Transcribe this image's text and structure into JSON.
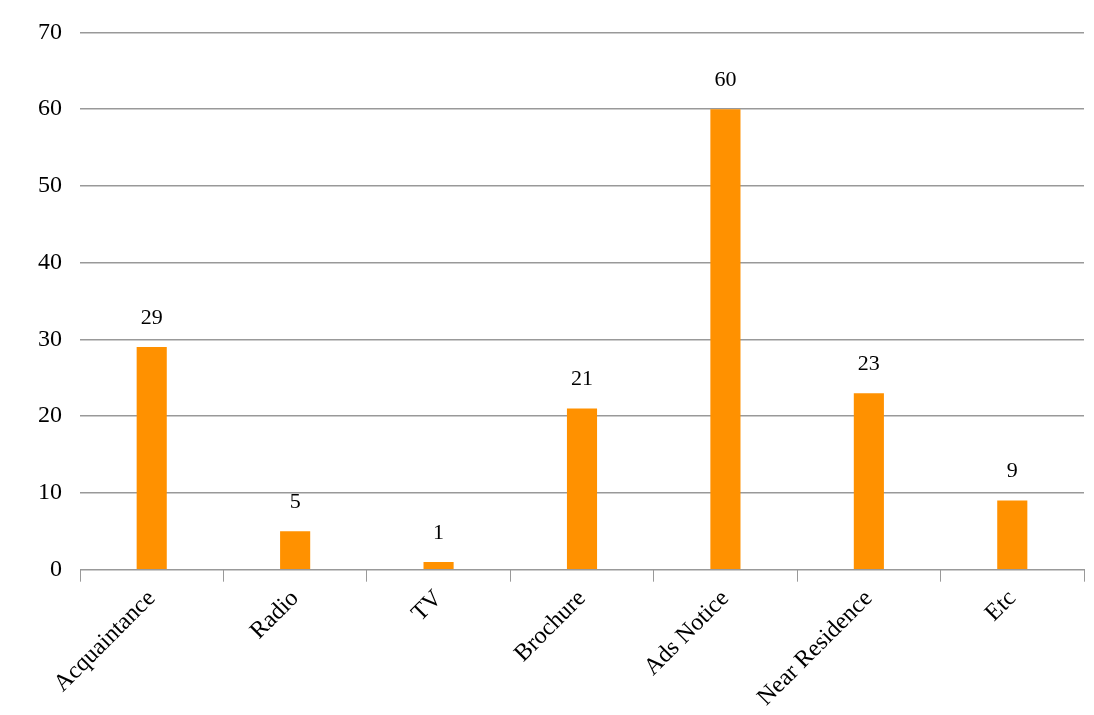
{
  "chart_data": {
    "type": "bar",
    "categories": [
      "Acquaintance",
      "Radio",
      "TV",
      "Brochure",
      "Ads Notice",
      "Near Residence",
      "Etc"
    ],
    "values": [
      29,
      5,
      1,
      21,
      60,
      23,
      9
    ],
    "color": "#ff9100",
    "ylim": [
      0,
      70
    ],
    "yticks": [
      0,
      10,
      20,
      30,
      40,
      50,
      60,
      70
    ],
    "grid": "y",
    "data_labels": true,
    "legend": false
  }
}
